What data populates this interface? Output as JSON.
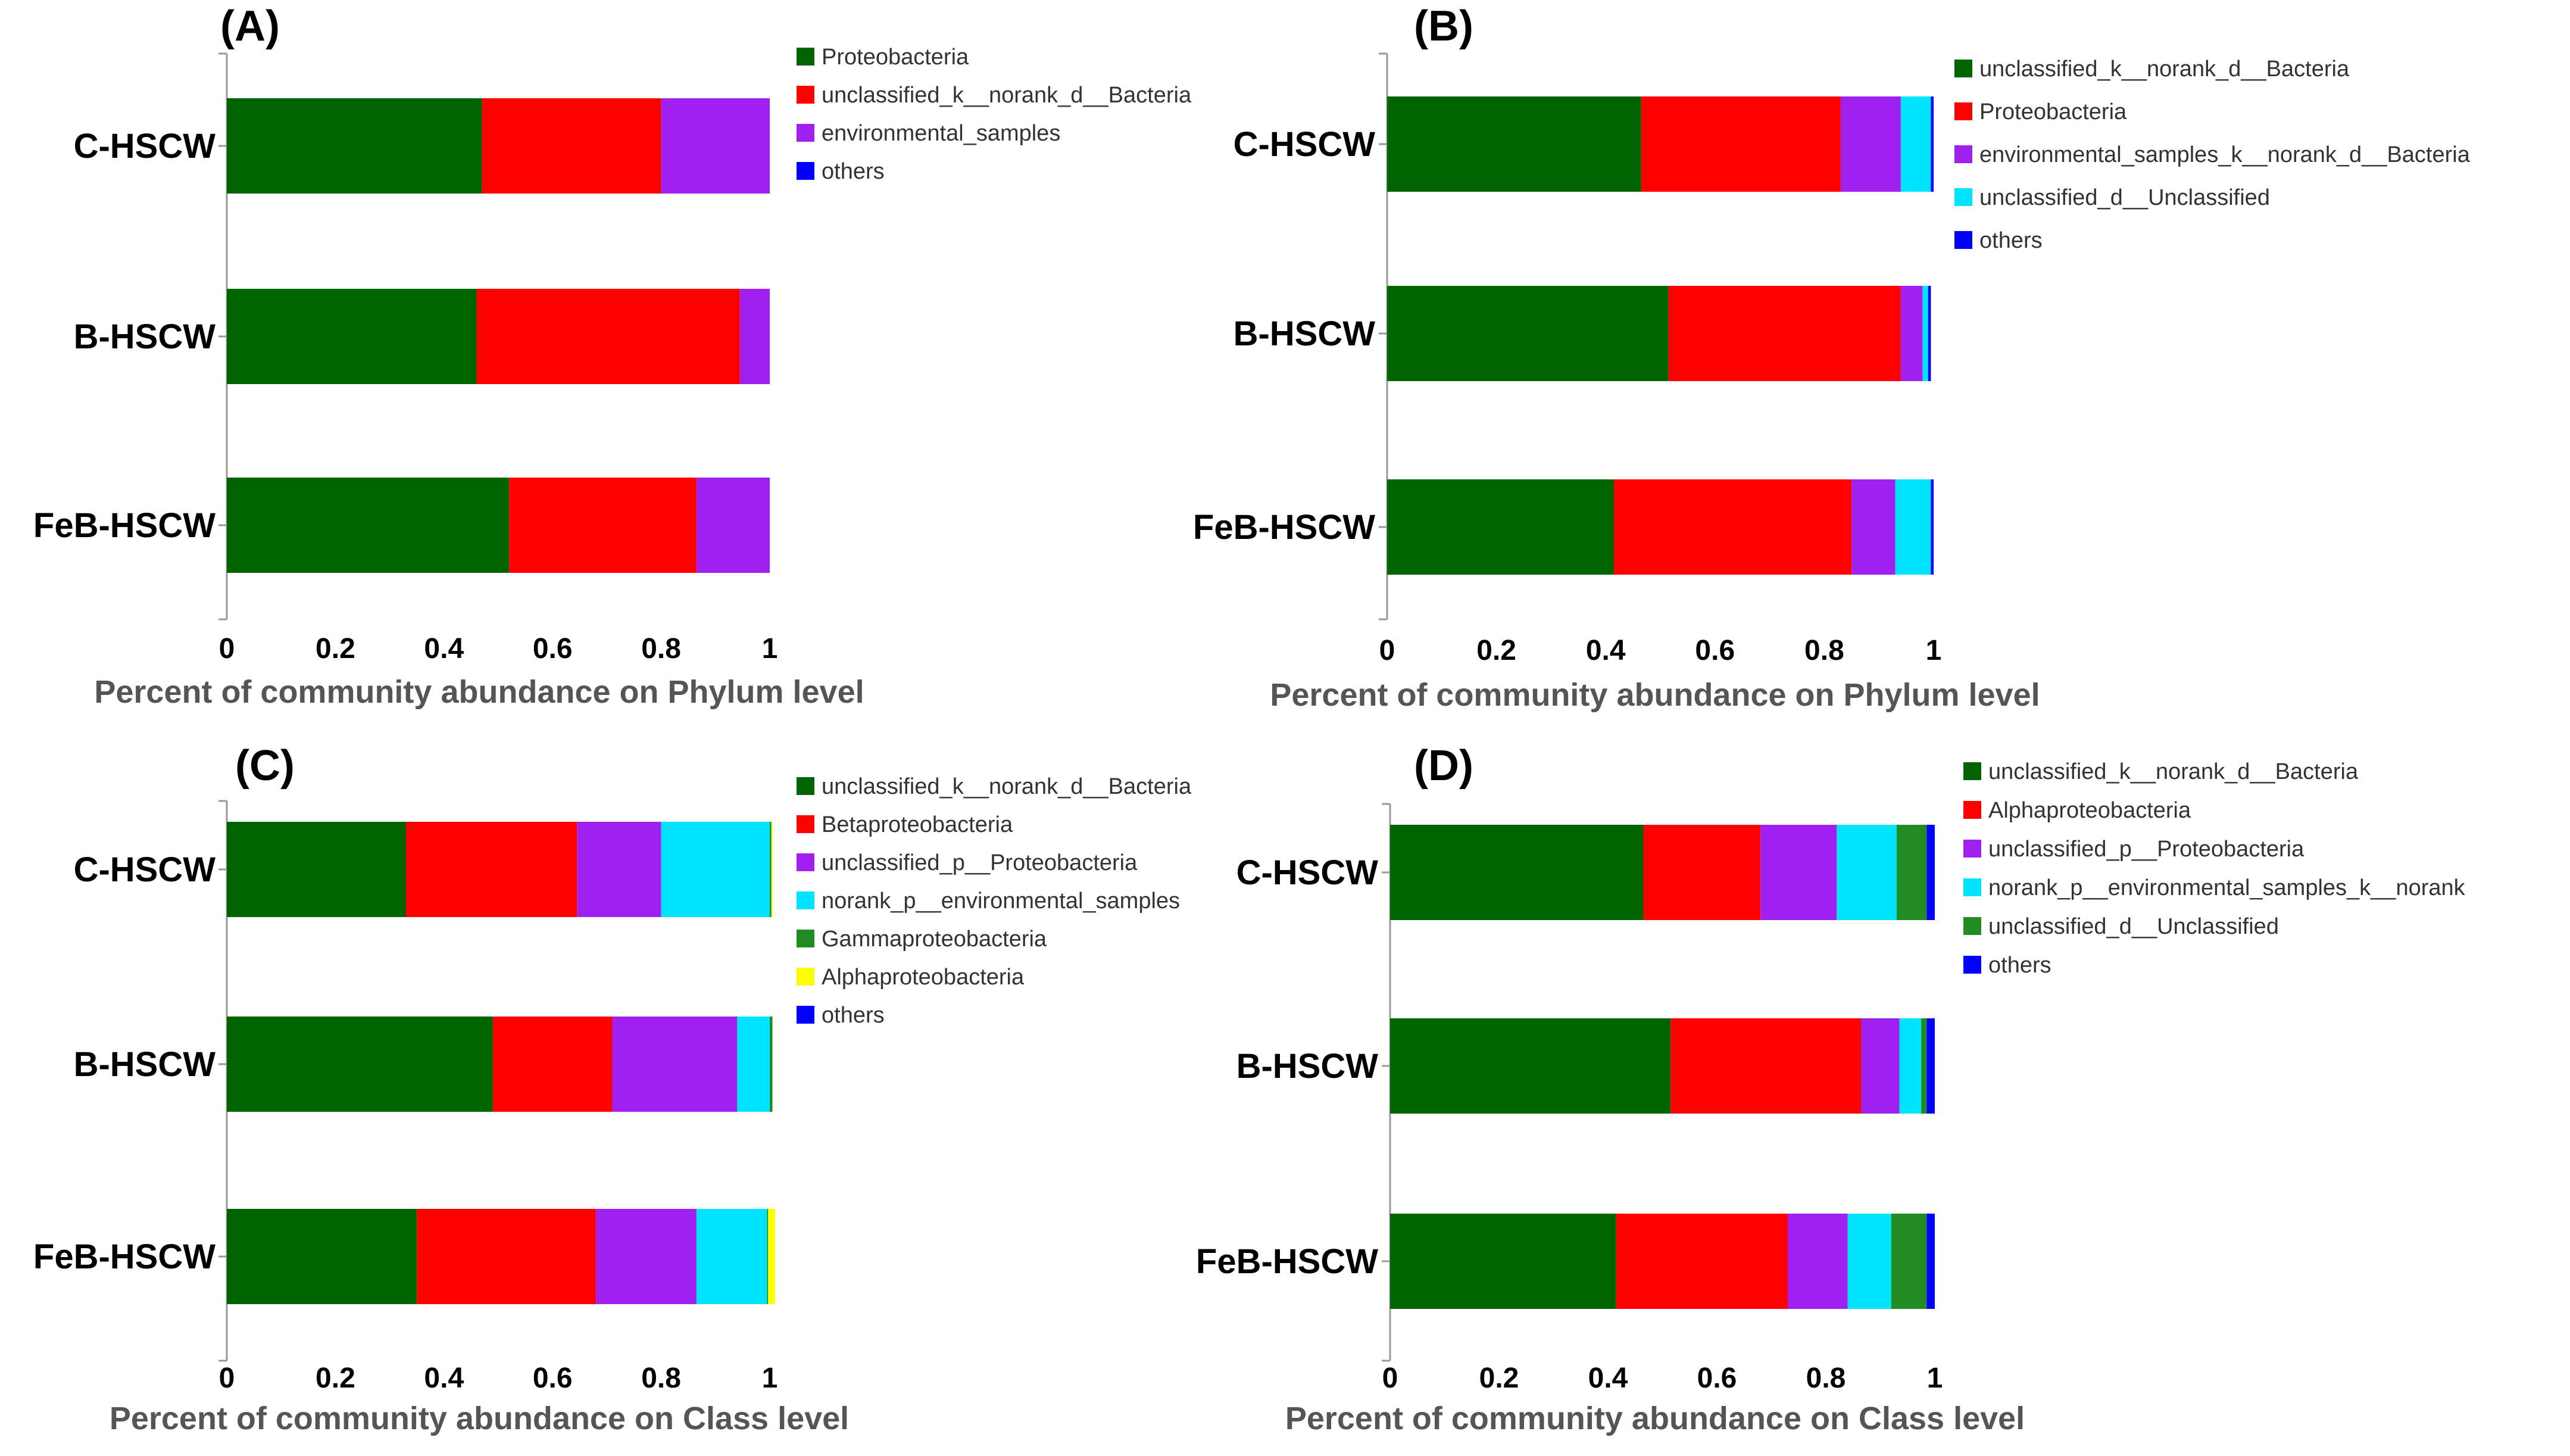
{
  "chart_data": [
    {
      "panel": "(A)",
      "type": "bar",
      "orientation": "horizontal",
      "stacked": true,
      "categories": [
        "C-HSCW",
        "B-HSCW",
        "FeB-HSCW"
      ],
      "series": [
        {
          "name": "Proteobacteria",
          "color": "#006400",
          "values": [
            0.47,
            0.46,
            0.52
          ]
        },
        {
          "name": "unclassified_k__norank_d__Bacteria",
          "color": "#FF0000",
          "values": [
            0.33,
            0.485,
            0.345
          ]
        },
        {
          "name": "environmental_samples",
          "color": "#A020F0",
          "values": [
            0.2,
            0.055,
            0.135
          ]
        },
        {
          "name": "others",
          "color": "#0000FF",
          "values": [
            0.0,
            0.0,
            0.0
          ]
        }
      ],
      "xlabel": "Percent of community abundance on Phylum level",
      "xlim": [
        0,
        1
      ],
      "ticks": [
        "0",
        "0.2",
        "0.4",
        "0.6",
        "0.8",
        "1"
      ],
      "legend": "top-right"
    },
    {
      "panel": "(B)",
      "type": "bar",
      "orientation": "horizontal",
      "stacked": true,
      "categories": [
        "C-HSCW",
        "B-HSCW",
        "FeB-HSCW"
      ],
      "series": [
        {
          "name": "unclassified_k__norank_d__Bacteria",
          "color": "#006400",
          "values": [
            0.465,
            0.515,
            0.415
          ]
        },
        {
          "name": "Proteobacteria",
          "color": "#FF0000",
          "values": [
            0.365,
            0.425,
            0.435
          ]
        },
        {
          "name": "environmental_samples_k__norank_d__Bacteria",
          "color": "#A020F0",
          "values": [
            0.11,
            0.04,
            0.08
          ]
        },
        {
          "name": "unclassified_d__Unclassified",
          "color": "#00E5FF",
          "values": [
            0.055,
            0.01,
            0.065
          ]
        },
        {
          "name": "others",
          "color": "#0000FF",
          "values": [
            0.005,
            0.005,
            0.005
          ]
        }
      ],
      "xlabel": "Percent of community abundance on Phylum level",
      "xlim": [
        0,
        1
      ],
      "ticks": [
        "0",
        "0.2",
        "0.4",
        "0.6",
        "0.8",
        "1"
      ],
      "legend": "top-right"
    },
    {
      "panel": "(C)",
      "type": "bar",
      "orientation": "horizontal",
      "stacked": true,
      "categories": [
        "C-HSCW",
        "B-HSCW",
        "FeB-HSCW"
      ],
      "series": [
        {
          "name": "unclassified_k__norank_d__Bacteria",
          "color": "#006400",
          "values": [
            0.33,
            0.49,
            0.35
          ]
        },
        {
          "name": "Betaproteobacteria",
          "color": "#FF0000",
          "values": [
            0.315,
            0.22,
            0.33
          ]
        },
        {
          "name": "unclassified_p__Proteobacteria",
          "color": "#A020F0",
          "values": [
            0.155,
            0.23,
            0.185
          ]
        },
        {
          "name": "norank_p__environmental_samples",
          "color": "#00E5FF",
          "values": [
            0.2,
            0.06,
            0.13
          ]
        },
        {
          "name": "Gammaproteobacteria",
          "color": "#228B22",
          "values": [
            0.003,
            0.005,
            0.002
          ]
        },
        {
          "name": "Alphaproteobacteria",
          "color": "#FFFF00",
          "values": [
            0.002,
            0.0,
            0.013
          ]
        },
        {
          "name": "others",
          "color": "#0000FF",
          "values": [
            0.0,
            0.0,
            0.0
          ]
        }
      ],
      "xlabel": "Percent of community abundance on Class level",
      "xlim": [
        0,
        1
      ],
      "ticks": [
        "0",
        "0.2",
        "0.4",
        "0.6",
        "0.8",
        "1"
      ],
      "legend": "top-right"
    },
    {
      "panel": "(D)",
      "type": "bar",
      "orientation": "horizontal",
      "stacked": true,
      "categories": [
        "C-HSCW",
        "B-HSCW",
        "FeB-HSCW"
      ],
      "series": [
        {
          "name": "unclassified_k__norank_d__Bacteria",
          "color": "#006400",
          "values": [
            0.465,
            0.515,
            0.415
          ]
        },
        {
          "name": "Alphaproteobacteria",
          "color": "#FF0000",
          "values": [
            0.215,
            0.35,
            0.315
          ]
        },
        {
          "name": "unclassified_p__Proteobacteria",
          "color": "#A020F0",
          "values": [
            0.14,
            0.07,
            0.11
          ]
        },
        {
          "name": "norank_p__environmental_samples_k__norank",
          "color": "#00E5FF",
          "values": [
            0.11,
            0.04,
            0.08
          ]
        },
        {
          "name": "unclassified_d__Unclassified",
          "color": "#228B22",
          "values": [
            0.055,
            0.01,
            0.065
          ]
        },
        {
          "name": "others",
          "color": "#0000FF",
          "values": [
            0.015,
            0.015,
            0.015
          ]
        }
      ],
      "xlabel": "Percent of community abundance on Class level",
      "xlim": [
        0,
        1
      ],
      "ticks": [
        "0",
        "0.2",
        "0.4",
        "0.6",
        "0.8",
        "1"
      ],
      "legend": "top-right"
    }
  ]
}
